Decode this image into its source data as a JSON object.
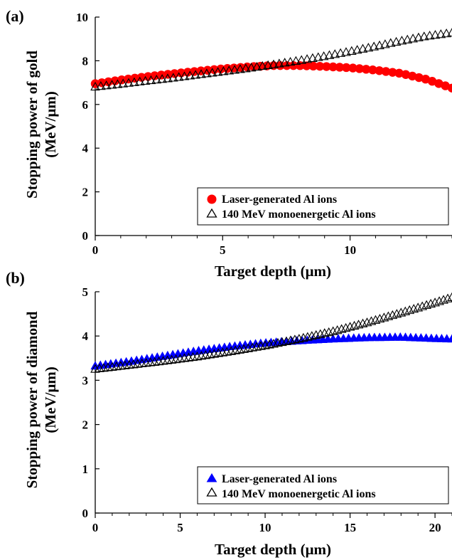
{
  "chart_data": [
    {
      "type": "scatter",
      "panel_label": "(a)",
      "xlabel": "Target depth (μm)",
      "ylabel_line1": "Stopping power of gold",
      "ylabel_line2": "(MeV/μm)",
      "xlim": [
        0,
        14
      ],
      "ylim": [
        0,
        10
      ],
      "xticks": [
        0,
        5,
        10
      ],
      "yticks": [
        0,
        2,
        4,
        6,
        8,
        10
      ],
      "x_minor_step": 1,
      "legend_position": "bottom-right",
      "series": [
        {
          "name": "Laser-generated Al ions",
          "marker": "circle",
          "color": "#ff0000",
          "x_start": 0,
          "x_end": 14,
          "count": 55,
          "x": [
            0,
            1,
            2,
            3,
            4,
            5,
            6,
            7,
            8,
            9,
            10,
            11,
            12,
            13,
            14
          ],
          "y": [
            6.95,
            7.12,
            7.27,
            7.4,
            7.52,
            7.63,
            7.72,
            7.78,
            7.78,
            7.74,
            7.68,
            7.57,
            7.42,
            7.15,
            6.75
          ]
        },
        {
          "name": "140 MeV monoenergetic Al ions",
          "marker": "triangle-open",
          "color": "#000000",
          "x_start": 0,
          "x_end": 14,
          "count": 65,
          "x": [
            0,
            1,
            2,
            3,
            4,
            5,
            6,
            7,
            8,
            9,
            10,
            11,
            12,
            13,
            14
          ],
          "y": [
            6.8,
            6.93,
            7.07,
            7.2,
            7.35,
            7.5,
            7.65,
            7.82,
            8.0,
            8.2,
            8.42,
            8.65,
            8.9,
            9.12,
            9.27
          ]
        }
      ]
    },
    {
      "type": "scatter",
      "panel_label": "(b)",
      "xlabel": "Target depth (μm)",
      "ylabel_line1": "Stopping power of diamond",
      "ylabel_line2": "(MeV/μm)",
      "xlim": [
        0,
        21
      ],
      "ylim": [
        0,
        5
      ],
      "xticks": [
        0,
        5,
        10,
        15,
        20
      ],
      "yticks": [
        0,
        1,
        2,
        3,
        4,
        5
      ],
      "x_minor_step": 1,
      "legend_position": "bottom-right",
      "series": [
        {
          "name": "Laser-generated Al ions",
          "marker": "triangle-filled",
          "color": "#0000ff",
          "x_start": 0,
          "x_end": 21,
          "count": 70,
          "x": [
            0,
            2,
            4,
            6,
            8,
            10,
            12,
            14,
            16,
            18,
            20,
            21
          ],
          "y": [
            3.32,
            3.42,
            3.54,
            3.66,
            3.76,
            3.84,
            3.89,
            3.93,
            3.96,
            3.97,
            3.94,
            3.93
          ]
        },
        {
          "name": "140 MeV monoenergetic Al ions",
          "marker": "triangle-open",
          "color": "#000000",
          "x_start": 0,
          "x_end": 21,
          "count": 85,
          "x": [
            0,
            2,
            4,
            6,
            8,
            10,
            12,
            14,
            16,
            18,
            20,
            21
          ],
          "y": [
            3.25,
            3.34,
            3.43,
            3.53,
            3.65,
            3.78,
            3.93,
            4.1,
            4.3,
            4.52,
            4.75,
            4.87
          ]
        }
      ]
    }
  ]
}
